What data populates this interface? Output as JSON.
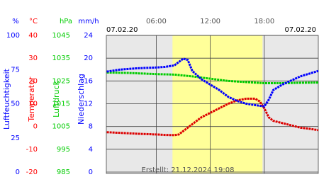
{
  "chart_data": {
    "type": "line",
    "dates": [
      "07.02.20",
      "07.02.20"
    ],
    "note": "Erstellt: 21.12.2024 19:08",
    "xlim": [
      0.45,
      24
    ],
    "xticks": [
      {
        "value": 6,
        "label": "06:00"
      },
      {
        "value": 12,
        "label": "12:00"
      },
      {
        "value": 18,
        "label": "18:00"
      }
    ],
    "daylight": [
      7.8,
      17.8
    ],
    "grid": true,
    "axes": [
      {
        "label": "Luftfeuchtigkeit",
        "unit": "%",
        "color": "#0000ff",
        "lim": [
          0,
          100
        ],
        "ticks": [
          0,
          25,
          50,
          75,
          100
        ]
      },
      {
        "label": "Temperatur",
        "unit": "°C",
        "color": "#ff0000",
        "lim": [
          -20,
          40
        ],
        "ticks": [
          -20,
          -10,
          0,
          10,
          20,
          30,
          40
        ]
      },
      {
        "label": "Luftdruck",
        "unit": "hPa",
        "color": "#00cc00",
        "lim": [
          985,
          1045
        ],
        "ticks": [
          985,
          995,
          1005,
          1015,
          1025,
          1035,
          1045
        ]
      },
      {
        "label": "Niederschlag",
        "unit": "mm/h",
        "color": "#0000ff",
        "lim": [
          0,
          24
        ],
        "ticks": [
          0,
          4,
          8,
          12,
          16,
          20,
          24
        ]
      }
    ],
    "series": [
      {
        "axis": 2,
        "color": "#00cc00",
        "x": [
          0.5,
          3,
          6,
          8,
          10,
          12,
          14,
          16,
          18,
          20,
          22,
          24
        ],
        "values": [
          1028.7,
          1028.5,
          1028,
          1027.8,
          1027,
          1026,
          1025,
          1024.5,
          1024,
          1024,
          1024.2,
          1024.3
        ]
      },
      {
        "axis": 1,
        "color": "#dd0000",
        "x": [
          0.5,
          2,
          4,
          6,
          7,
          8,
          8.5,
          9,
          10,
          11,
          12,
          13,
          14,
          15,
          16,
          17,
          17.5,
          18,
          18.5,
          19,
          20,
          21,
          22,
          23,
          24
        ],
        "values": [
          -2.5,
          -2.8,
          -3.2,
          -3.5,
          -3.7,
          -3.8,
          -3.5,
          -2,
          1,
          4,
          6,
          8,
          10,
          11.5,
          12.2,
          12.2,
          11,
          8,
          4,
          2.5,
          1.5,
          0.5,
          -0.5,
          -1,
          -1.6
        ]
      },
      {
        "axis": 0,
        "color": "#0000ff",
        "x": [
          0.5,
          2,
          4,
          6,
          7,
          8,
          9,
          9.5,
          10,
          11,
          12,
          13,
          14,
          15,
          16,
          17,
          18,
          18.5,
          19,
          20,
          21,
          22,
          23,
          24
        ],
        "values": [
          73.5,
          75,
          76,
          76.5,
          77,
          78,
          83,
          82,
          74,
          68,
          64,
          60,
          55,
          52,
          50,
          49,
          48,
          53,
          60,
          64,
          67,
          70,
          72,
          74
        ]
      }
    ]
  }
}
